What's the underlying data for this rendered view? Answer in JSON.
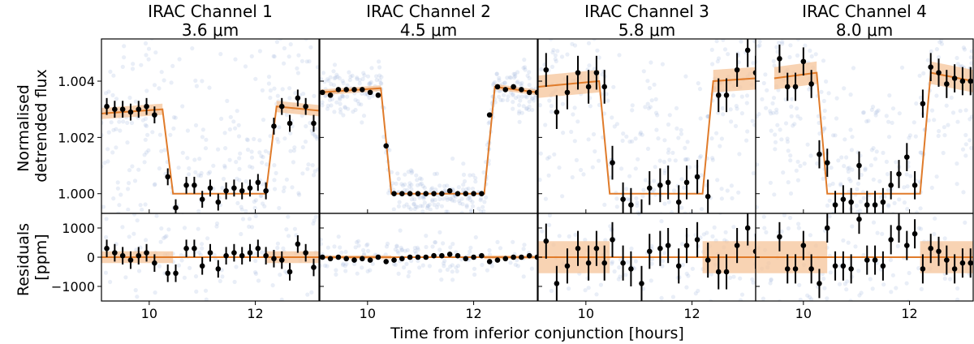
{
  "figure": {
    "xlabel": "Time from inferior conjunction [hours]",
    "top_ylabel_lines": [
      "Normalised",
      "detrended flux"
    ],
    "bottom_ylabel_lines": [
      "Residuals",
      "[ppm]"
    ],
    "colors": {
      "model": "#e07b2a",
      "band": "#f5c49a",
      "scatter": "#9bb3dc",
      "points": "#000000"
    }
  },
  "chart_data": [
    {
      "type": "line",
      "title_lines": [
        "IRAC Channel 1",
        "3.6 μm"
      ],
      "xlim": [
        9.1,
        13.2
      ],
      "xticks": [
        10,
        12
      ],
      "flux_ylim": [
        0.9993,
        1.0055
      ],
      "resid_ylim": [
        -1500,
        1500
      ],
      "model": {
        "x": [
          9.1,
          10.25,
          10.45,
          12.2,
          12.4,
          13.2
        ],
        "y": [
          1.00285,
          1.003,
          1.0,
          1.0,
          1.0031,
          1.00295
        ]
      },
      "flux_errorbars": {
        "x": [
          9.2,
          9.35,
          9.5,
          9.65,
          9.8,
          9.95,
          10.1,
          10.35,
          10.5,
          10.7,
          10.85,
          11.0,
          11.15,
          11.3,
          11.45,
          11.6,
          11.75,
          11.9,
          12.05,
          12.2,
          12.35,
          12.5,
          12.65,
          12.8,
          12.95,
          13.1
        ],
        "y": [
          1.0031,
          1.003,
          1.003,
          1.0029,
          1.003,
          1.0031,
          1.0028,
          1.0006,
          0.9995,
          1.0003,
          1.0003,
          0.9998,
          1.0002,
          0.9997,
          1.0001,
          1.0002,
          1.0001,
          1.0002,
          1.0004,
          1.0001,
          1.0024,
          1.0031,
          1.0025,
          1.0034,
          1.0031,
          1.0025
        ],
        "err": [
          0.0003,
          0.0003,
          0.0003,
          0.0003,
          0.0003,
          0.0003,
          0.0003,
          0.0003,
          0.0003,
          0.0003,
          0.0003,
          0.0003,
          0.0003,
          0.0003,
          0.0003,
          0.0003,
          0.0003,
          0.0003,
          0.0003,
          0.0003,
          0.0003,
          0.0003,
          0.0003,
          0.0003,
          0.0003,
          0.0003
        ]
      },
      "resid_errorbars": {
        "x": [
          9.2,
          9.35,
          9.5,
          9.65,
          9.8,
          9.95,
          10.1,
          10.35,
          10.5,
          10.7,
          10.85,
          11.0,
          11.15,
          11.3,
          11.45,
          11.6,
          11.75,
          11.9,
          12.05,
          12.2,
          12.35,
          12.5,
          12.65,
          12.8,
          12.95,
          13.1
        ],
        "y": [
          300,
          150,
          50,
          -100,
          50,
          150,
          -200,
          -550,
          -550,
          300,
          300,
          -300,
          150,
          -400,
          50,
          150,
          50,
          150,
          300,
          50,
          -50,
          -100,
          -500,
          450,
          150,
          -350
        ],
        "err": [
          300,
          300,
          300,
          300,
          300,
          300,
          300,
          300,
          300,
          300,
          300,
          300,
          300,
          300,
          300,
          300,
          300,
          300,
          300,
          300,
          300,
          300,
          300,
          300,
          300,
          300
        ]
      }
    },
    {
      "type": "line",
      "title_lines": [
        "IRAC Channel 2",
        "4.5 μm"
      ],
      "xlim": [
        9.1,
        13.2
      ],
      "xticks": [
        10,
        12
      ],
      "flux_ylim": [
        0.9993,
        1.0055
      ],
      "resid_ylim": [
        -1500,
        1500
      ],
      "model": {
        "x": [
          9.1,
          10.25,
          10.45,
          12.2,
          12.4,
          13.2
        ],
        "y": [
          1.0036,
          1.00375,
          1.0,
          1.0,
          1.0038,
          1.0036
        ],
        "band": 0.0001
      },
      "flux_errorbars": {
        "x": [
          9.15,
          9.3,
          9.45,
          9.6,
          9.75,
          9.9,
          10.05,
          10.2,
          10.35,
          10.5,
          10.65,
          10.8,
          10.95,
          11.1,
          11.25,
          11.4,
          11.55,
          11.7,
          11.85,
          12.0,
          12.15,
          12.3,
          12.45,
          12.6,
          12.75,
          12.9,
          13.05,
          13.2
        ],
        "y": [
          1.0036,
          1.0035,
          1.0037,
          1.0037,
          1.0037,
          1.0037,
          1.0036,
          1.0035,
          1.0017,
          1.0,
          1.0,
          1.0,
          1.0,
          1.0,
          1.0,
          1.0,
          1.0001,
          1.0,
          1.0,
          1.0,
          1.0,
          1.0028,
          1.0038,
          1.0037,
          1.0038,
          1.0037,
          1.0036,
          1.0036
        ],
        "err": [
          4e-05,
          4e-05,
          4e-05,
          4e-05,
          4e-05,
          4e-05,
          4e-05,
          4e-05,
          4e-05,
          4e-05,
          4e-05,
          4e-05,
          4e-05,
          4e-05,
          4e-05,
          4e-05,
          4e-05,
          4e-05,
          4e-05,
          4e-05,
          4e-05,
          4e-05,
          4e-05,
          4e-05,
          4e-05,
          4e-05,
          4e-05,
          4e-05
        ]
      },
      "resid_errorbars": {
        "x": [
          9.15,
          9.3,
          9.45,
          9.6,
          9.75,
          9.9,
          10.05,
          10.2,
          10.35,
          10.5,
          10.65,
          10.8,
          10.95,
          11.1,
          11.25,
          11.4,
          11.55,
          11.7,
          11.85,
          12.0,
          12.15,
          12.3,
          12.45,
          12.6,
          12.75,
          12.9,
          13.05,
          13.2
        ],
        "y": [
          0,
          -50,
          0,
          -50,
          -100,
          -50,
          -100,
          0,
          -150,
          -100,
          -50,
          0,
          0,
          0,
          50,
          50,
          100,
          50,
          -50,
          0,
          50,
          -150,
          -100,
          -50,
          0,
          0,
          50,
          0
        ],
        "err": [
          60,
          60,
          60,
          60,
          60,
          60,
          60,
          60,
          60,
          60,
          60,
          60,
          60,
          60,
          60,
          60,
          60,
          60,
          60,
          60,
          60,
          60,
          60,
          60,
          60,
          60,
          60,
          60
        ]
      }
    },
    {
      "type": "line",
      "title_lines": [
        "IRAC Channel 3",
        "5.8 μm"
      ],
      "xlim": [
        9.1,
        13.2
      ],
      "xticks": [
        10,
        12
      ],
      "flux_ylim": [
        0.9993,
        1.0055
      ],
      "resid_ylim": [
        -1500,
        1500
      ],
      "model": {
        "x": [
          9.1,
          10.25,
          10.45,
          12.2,
          12.4,
          13.2
        ],
        "y": [
          1.0038,
          1.004,
          1.0,
          1.0,
          1.004,
          1.0041
        ]
      },
      "flux_errorbars": {
        "x": [
          9.25,
          9.45,
          9.65,
          9.85,
          10.05,
          10.2,
          10.35,
          10.5,
          10.7,
          10.85,
          11.05,
          11.2,
          11.4,
          11.55,
          11.75,
          11.9,
          12.1,
          12.3,
          12.5,
          12.65,
          12.85,
          13.05,
          13.2
        ],
        "y": [
          1.0044,
          1.0029,
          1.0036,
          1.0043,
          1.0038,
          1.0043,
          1.0038,
          1.0011,
          0.9998,
          0.9996,
          0.9992,
          1.0002,
          1.0003,
          1.0004,
          0.9997,
          1.0004,
          1.0006,
          0.9999,
          1.0035,
          1.0035,
          1.0044,
          1.0051,
          1.0043
        ],
        "err": [
          0.0006,
          0.0006,
          0.0006,
          0.0006,
          0.0006,
          0.0006,
          0.0006,
          0.0006,
          0.0006,
          0.0006,
          0.0006,
          0.0006,
          0.0006,
          0.0006,
          0.0006,
          0.0006,
          0.0006,
          0.0006,
          0.0006,
          0.0006,
          0.0006,
          0.0006,
          0.0006
        ]
      },
      "resid_errorbars": {
        "x": [
          9.25,
          9.45,
          9.65,
          9.85,
          10.05,
          10.2,
          10.35,
          10.5,
          10.7,
          10.85,
          11.05,
          11.2,
          11.4,
          11.55,
          11.75,
          11.9,
          12.1,
          12.3,
          12.5,
          12.65,
          12.85,
          13.05,
          13.2
        ],
        "y": [
          550,
          -900,
          -300,
          300,
          -200,
          300,
          -200,
          600,
          -200,
          -400,
          -900,
          200,
          300,
          400,
          -300,
          400,
          600,
          -100,
          -500,
          -500,
          400,
          1000,
          200
        ],
        "err": [
          600,
          600,
          600,
          600,
          600,
          600,
          600,
          600,
          600,
          600,
          600,
          600,
          600,
          600,
          600,
          600,
          600,
          600,
          600,
          600,
          600,
          600,
          600
        ]
      }
    },
    {
      "type": "line",
      "title_lines": [
        "IRAC Channel 4",
        "8.0 μm"
      ],
      "xlim": [
        9.1,
        13.2
      ],
      "xticks": [
        10,
        12
      ],
      "flux_ylim": [
        0.9993,
        1.0055
      ],
      "resid_ylim": [
        -1500,
        1500
      ],
      "model": {
        "x": [
          9.45,
          10.25,
          10.45,
          12.2,
          12.4,
          13.2
        ],
        "y": [
          1.0041,
          1.0043,
          1.0,
          1.0,
          1.0043,
          1.004
        ]
      },
      "flux_errorbars": {
        "x": [
          9.55,
          9.7,
          9.85,
          10.0,
          10.15,
          10.3,
          10.45,
          10.6,
          10.75,
          10.9,
          11.05,
          11.2,
          11.35,
          11.5,
          11.65,
          11.8,
          11.95,
          12.1,
          12.25,
          12.4,
          12.55,
          12.7,
          12.85,
          13.0,
          13.15
        ],
        "y": [
          1.0048,
          1.0038,
          1.0038,
          1.0047,
          1.0039,
          1.0014,
          1.0011,
          0.9996,
          0.9998,
          0.9997,
          1.001,
          0.9996,
          0.9996,
          0.9997,
          1.0003,
          1.0007,
          1.0013,
          1.0003,
          1.0032,
          1.0045,
          1.0043,
          1.0039,
          1.0041,
          1.004,
          1.004
        ],
        "err": [
          0.0005,
          0.0005,
          0.0005,
          0.0005,
          0.0005,
          0.0005,
          0.0005,
          0.0005,
          0.0005,
          0.0005,
          0.0005,
          0.0005,
          0.0005,
          0.0005,
          0.0005,
          0.0005,
          0.0005,
          0.0005,
          0.0005,
          0.0005,
          0.0005,
          0.0005,
          0.0005,
          0.0005,
          0.0005
        ]
      },
      "resid_errorbars": {
        "x": [
          9.55,
          9.7,
          9.85,
          10.0,
          10.15,
          10.3,
          10.45,
          10.6,
          10.75,
          10.9,
          11.05,
          11.2,
          11.35,
          11.5,
          11.65,
          11.8,
          11.95,
          12.1,
          12.25,
          12.4,
          12.55,
          12.7,
          12.85,
          13.0,
          13.15
        ],
        "y": [
          700,
          -400,
          -400,
          400,
          -400,
          -900,
          1000,
          -300,
          -300,
          -400,
          1300,
          -100,
          -100,
          -300,
          600,
          1000,
          400,
          800,
          -400,
          300,
          200,
          -100,
          -400,
          -200,
          -200
        ],
        "err": [
          500,
          500,
          500,
          500,
          500,
          500,
          500,
          500,
          500,
          500,
          500,
          500,
          500,
          500,
          500,
          500,
          500,
          500,
          500,
          500,
          500,
          500,
          500,
          500,
          500
        ]
      }
    }
  ]
}
